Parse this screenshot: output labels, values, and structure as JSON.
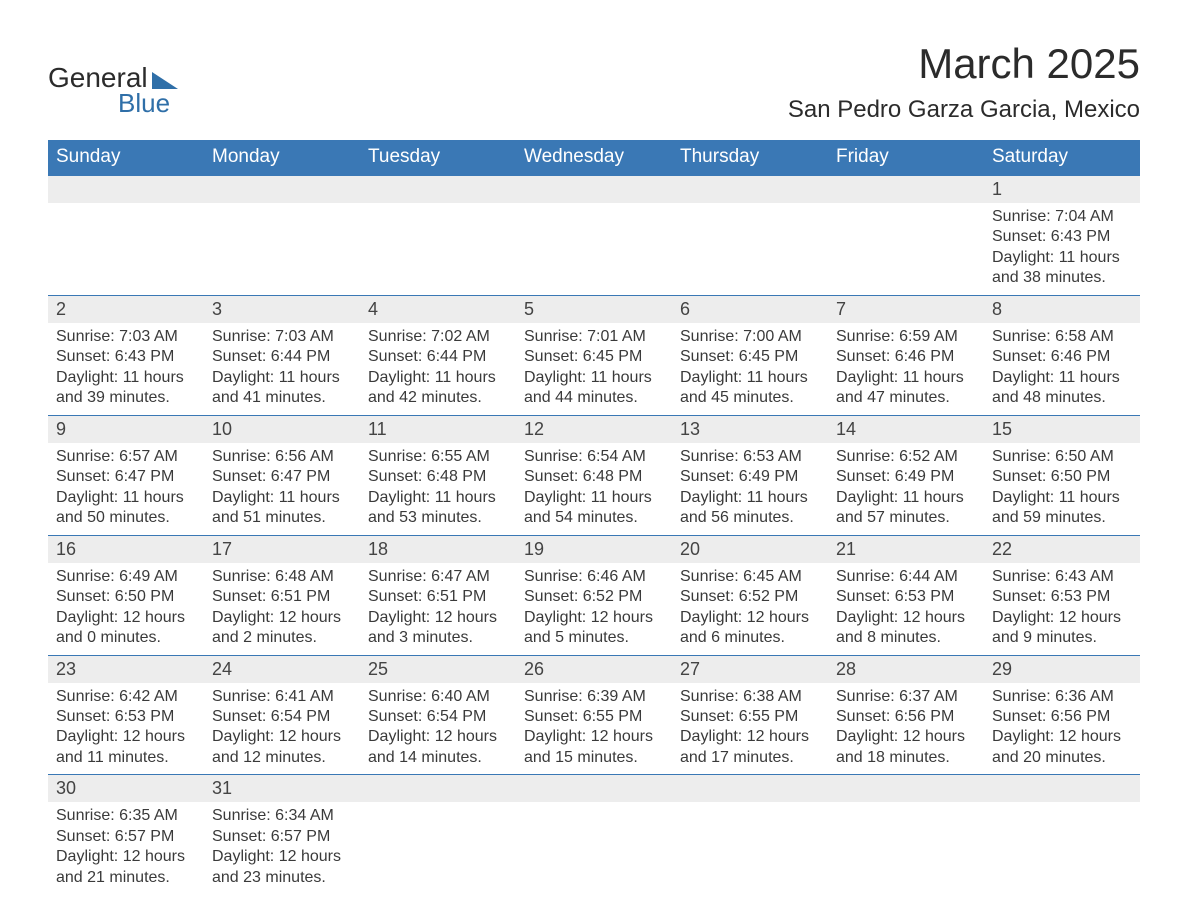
{
  "logo": {
    "text1": "General",
    "text2": "Blue",
    "triangle_color": "#2f6fa8"
  },
  "title": "March 2025",
  "location": "San Pedro Garza Garcia, Mexico",
  "colors": {
    "header_bg": "#3a78b5",
    "header_fg": "#ffffff",
    "daynum_bg": "#ededed",
    "border": "#3a78b5",
    "text": "#333333"
  },
  "font": {
    "family": "Arial",
    "title_size_pt": 32,
    "location_size_pt": 18,
    "header_size_pt": 14,
    "body_size_pt": 12
  },
  "weekdays": [
    "Sunday",
    "Monday",
    "Tuesday",
    "Wednesday",
    "Thursday",
    "Friday",
    "Saturday"
  ],
  "weeks": [
    [
      null,
      null,
      null,
      null,
      null,
      null,
      {
        "n": "1",
        "sunrise": "Sunrise: 7:04 AM",
        "sunset": "Sunset: 6:43 PM",
        "day1": "Daylight: 11 hours",
        "day2": "and 38 minutes."
      }
    ],
    [
      {
        "n": "2",
        "sunrise": "Sunrise: 7:03 AM",
        "sunset": "Sunset: 6:43 PM",
        "day1": "Daylight: 11 hours",
        "day2": "and 39 minutes."
      },
      {
        "n": "3",
        "sunrise": "Sunrise: 7:03 AM",
        "sunset": "Sunset: 6:44 PM",
        "day1": "Daylight: 11 hours",
        "day2": "and 41 minutes."
      },
      {
        "n": "4",
        "sunrise": "Sunrise: 7:02 AM",
        "sunset": "Sunset: 6:44 PM",
        "day1": "Daylight: 11 hours",
        "day2": "and 42 minutes."
      },
      {
        "n": "5",
        "sunrise": "Sunrise: 7:01 AM",
        "sunset": "Sunset: 6:45 PM",
        "day1": "Daylight: 11 hours",
        "day2": "and 44 minutes."
      },
      {
        "n": "6",
        "sunrise": "Sunrise: 7:00 AM",
        "sunset": "Sunset: 6:45 PM",
        "day1": "Daylight: 11 hours",
        "day2": "and 45 minutes."
      },
      {
        "n": "7",
        "sunrise": "Sunrise: 6:59 AM",
        "sunset": "Sunset: 6:46 PM",
        "day1": "Daylight: 11 hours",
        "day2": "and 47 minutes."
      },
      {
        "n": "8",
        "sunrise": "Sunrise: 6:58 AM",
        "sunset": "Sunset: 6:46 PM",
        "day1": "Daylight: 11 hours",
        "day2": "and 48 minutes."
      }
    ],
    [
      {
        "n": "9",
        "sunrise": "Sunrise: 6:57 AM",
        "sunset": "Sunset: 6:47 PM",
        "day1": "Daylight: 11 hours",
        "day2": "and 50 minutes."
      },
      {
        "n": "10",
        "sunrise": "Sunrise: 6:56 AM",
        "sunset": "Sunset: 6:47 PM",
        "day1": "Daylight: 11 hours",
        "day2": "and 51 minutes."
      },
      {
        "n": "11",
        "sunrise": "Sunrise: 6:55 AM",
        "sunset": "Sunset: 6:48 PM",
        "day1": "Daylight: 11 hours",
        "day2": "and 53 minutes."
      },
      {
        "n": "12",
        "sunrise": "Sunrise: 6:54 AM",
        "sunset": "Sunset: 6:48 PM",
        "day1": "Daylight: 11 hours",
        "day2": "and 54 minutes."
      },
      {
        "n": "13",
        "sunrise": "Sunrise: 6:53 AM",
        "sunset": "Sunset: 6:49 PM",
        "day1": "Daylight: 11 hours",
        "day2": "and 56 minutes."
      },
      {
        "n": "14",
        "sunrise": "Sunrise: 6:52 AM",
        "sunset": "Sunset: 6:49 PM",
        "day1": "Daylight: 11 hours",
        "day2": "and 57 minutes."
      },
      {
        "n": "15",
        "sunrise": "Sunrise: 6:50 AM",
        "sunset": "Sunset: 6:50 PM",
        "day1": "Daylight: 11 hours",
        "day2": "and 59 minutes."
      }
    ],
    [
      {
        "n": "16",
        "sunrise": "Sunrise: 6:49 AM",
        "sunset": "Sunset: 6:50 PM",
        "day1": "Daylight: 12 hours",
        "day2": "and 0 minutes."
      },
      {
        "n": "17",
        "sunrise": "Sunrise: 6:48 AM",
        "sunset": "Sunset: 6:51 PM",
        "day1": "Daylight: 12 hours",
        "day2": "and 2 minutes."
      },
      {
        "n": "18",
        "sunrise": "Sunrise: 6:47 AM",
        "sunset": "Sunset: 6:51 PM",
        "day1": "Daylight: 12 hours",
        "day2": "and 3 minutes."
      },
      {
        "n": "19",
        "sunrise": "Sunrise: 6:46 AM",
        "sunset": "Sunset: 6:52 PM",
        "day1": "Daylight: 12 hours",
        "day2": "and 5 minutes."
      },
      {
        "n": "20",
        "sunrise": "Sunrise: 6:45 AM",
        "sunset": "Sunset: 6:52 PM",
        "day1": "Daylight: 12 hours",
        "day2": "and 6 minutes."
      },
      {
        "n": "21",
        "sunrise": "Sunrise: 6:44 AM",
        "sunset": "Sunset: 6:53 PM",
        "day1": "Daylight: 12 hours",
        "day2": "and 8 minutes."
      },
      {
        "n": "22",
        "sunrise": "Sunrise: 6:43 AM",
        "sunset": "Sunset: 6:53 PM",
        "day1": "Daylight: 12 hours",
        "day2": "and 9 minutes."
      }
    ],
    [
      {
        "n": "23",
        "sunrise": "Sunrise: 6:42 AM",
        "sunset": "Sunset: 6:53 PM",
        "day1": "Daylight: 12 hours",
        "day2": "and 11 minutes."
      },
      {
        "n": "24",
        "sunrise": "Sunrise: 6:41 AM",
        "sunset": "Sunset: 6:54 PM",
        "day1": "Daylight: 12 hours",
        "day2": "and 12 minutes."
      },
      {
        "n": "25",
        "sunrise": "Sunrise: 6:40 AM",
        "sunset": "Sunset: 6:54 PM",
        "day1": "Daylight: 12 hours",
        "day2": "and 14 minutes."
      },
      {
        "n": "26",
        "sunrise": "Sunrise: 6:39 AM",
        "sunset": "Sunset: 6:55 PM",
        "day1": "Daylight: 12 hours",
        "day2": "and 15 minutes."
      },
      {
        "n": "27",
        "sunrise": "Sunrise: 6:38 AM",
        "sunset": "Sunset: 6:55 PM",
        "day1": "Daylight: 12 hours",
        "day2": "and 17 minutes."
      },
      {
        "n": "28",
        "sunrise": "Sunrise: 6:37 AM",
        "sunset": "Sunset: 6:56 PM",
        "day1": "Daylight: 12 hours",
        "day2": "and 18 minutes."
      },
      {
        "n": "29",
        "sunrise": "Sunrise: 6:36 AM",
        "sunset": "Sunset: 6:56 PM",
        "day1": "Daylight: 12 hours",
        "day2": "and 20 minutes."
      }
    ],
    [
      {
        "n": "30",
        "sunrise": "Sunrise: 6:35 AM",
        "sunset": "Sunset: 6:57 PM",
        "day1": "Daylight: 12 hours",
        "day2": "and 21 minutes."
      },
      {
        "n": "31",
        "sunrise": "Sunrise: 6:34 AM",
        "sunset": "Sunset: 6:57 PM",
        "day1": "Daylight: 12 hours",
        "day2": "and 23 minutes."
      },
      null,
      null,
      null,
      null,
      null
    ]
  ]
}
